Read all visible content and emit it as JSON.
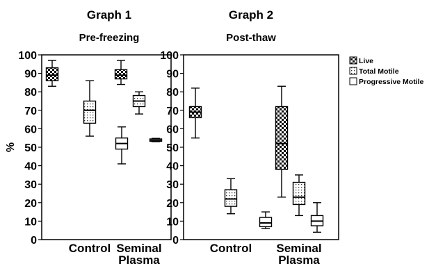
{
  "figure": {
    "ylabel": "%",
    "legend": {
      "placement": "right",
      "entries": [
        "Live",
        "Total Motile",
        "Progressive Motile"
      ]
    }
  },
  "chart_data": [
    {
      "type": "box",
      "title": "Graph 1",
      "subtitle": "Pre-freezing",
      "ylabel": "%",
      "ylim": [
        0,
        100
      ],
      "yticks": [
        0,
        10,
        20,
        30,
        40,
        50,
        60,
        70,
        80,
        90,
        100
      ],
      "grid": false,
      "categories": [
        "Control",
        "Seminal\nPlasma"
      ],
      "series": [
        {
          "name": "Live",
          "pattern": "checker",
          "boxes": [
            {
              "min": 83,
              "q1": 86,
              "median": 89,
              "q3": 93,
              "max": 97
            },
            {
              "min": 84,
              "q1": 87,
              "median": 89,
              "q3": 92,
              "max": 97
            }
          ]
        },
        {
          "name": "Total Motile",
          "pattern": "dots",
          "boxes": [
            {
              "min": 56,
              "q1": 63,
              "median": 70,
              "q3": 75,
              "max": 86
            },
            {
              "min": 68,
              "q1": 72,
              "median": 75,
              "q3": 78,
              "max": 80
            }
          ]
        },
        {
          "name": "Progressive Motile",
          "pattern": "plain",
          "boxes": [
            {
              "min": 41,
              "q1": 49,
              "median": 52,
              "q3": 55,
              "max": 61
            },
            {
              "min": 53,
              "q1": 53.2,
              "median": 53.8,
              "q3": 54.5,
              "max": 54.8
            }
          ]
        }
      ]
    },
    {
      "type": "box",
      "title": "Graph 2",
      "subtitle": "Post-thaw",
      "ylabel": "",
      "ylim": [
        0,
        100
      ],
      "yticks": [
        0,
        10,
        20,
        30,
        40,
        50,
        60,
        70,
        80,
        90,
        100
      ],
      "grid": false,
      "categories": [
        "Control",
        "Seminal\nPlasma"
      ],
      "series": [
        {
          "name": "Live",
          "pattern": "checker",
          "boxes": [
            {
              "min": 55,
              "q1": 66,
              "median": 69,
              "q3": 72,
              "max": 82
            },
            {
              "min": 23,
              "q1": 38,
              "median": 52,
              "q3": 72,
              "max": 83
            }
          ]
        },
        {
          "name": "Total Motile",
          "pattern": "dots",
          "boxes": [
            {
              "min": 14,
              "q1": 18,
              "median": 22,
              "q3": 27,
              "max": 33
            },
            {
              "min": 13,
              "q1": 19,
              "median": 23,
              "q3": 31,
              "max": 35
            }
          ]
        },
        {
          "name": "Progressive Motile",
          "pattern": "plain",
          "boxes": [
            {
              "min": 6,
              "q1": 7,
              "median": 9,
              "q3": 12,
              "max": 15
            },
            {
              "min": 4,
              "q1": 7.5,
              "median": 10,
              "q3": 13,
              "max": 20
            }
          ]
        }
      ]
    }
  ]
}
